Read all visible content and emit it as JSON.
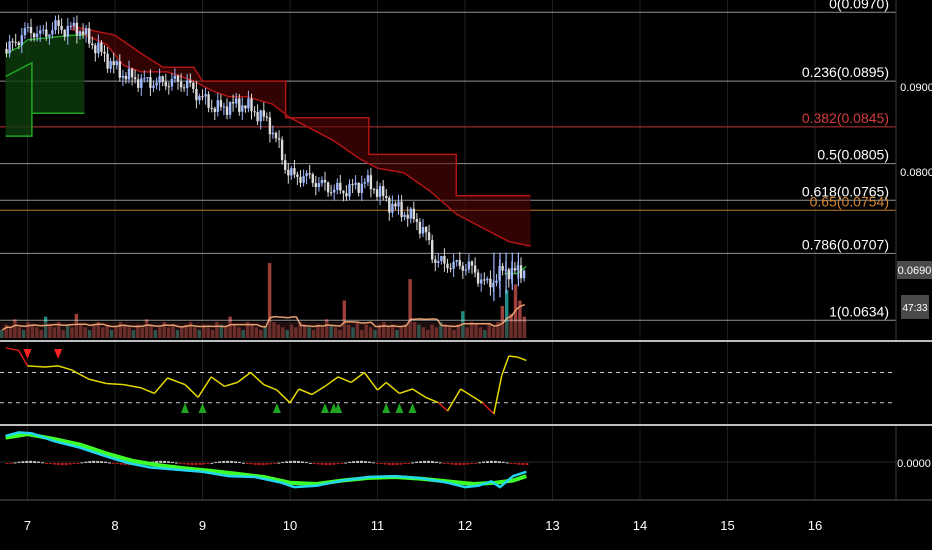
{
  "colors": {
    "background": "#000000",
    "grid": "#1e1e1e",
    "fib_line": "#cfcfcf",
    "fib_label": "#ffffff",
    "fib_red": "#d23c3c",
    "fib_orange": "#d2862e",
    "band_red": "#b01414",
    "band_green": "#1fa51f",
    "candle_up": "#9fb8ff",
    "candle_down": "#dcdcdc",
    "volume_up": "#26a69a",
    "volume_down": "#b84a44",
    "volume_ma": "#e8a070",
    "osc_yellow": "#e6d800",
    "osc_red": "#d81b1b",
    "osc_marker_green": "#1fa51f",
    "osc_marker_red": "#ff2020",
    "macd_cyan": "#22d6f0",
    "macd_green": "#3dff2a",
    "axis_text": "#ffffff",
    "tag_bg": "#4a4a4a"
  },
  "price_axis": {
    "ticks": [
      "0.0900",
      "0.0800"
    ]
  },
  "current_price_tag": "0.0690",
  "countdown_tag": "47:33",
  "macd_axis": {
    "ticks": [
      "0.0000"
    ]
  },
  "time_axis": {
    "labels": [
      "7",
      "8",
      "9",
      "10",
      "11",
      "12",
      "13",
      "14",
      "15",
      "16"
    ]
  },
  "chart_data": {
    "type": "line",
    "title": "",
    "ylim": [
      0.0618,
      0.0978
    ],
    "xlim": [
      6.75,
      16.9
    ],
    "fib_levels": [
      {
        "ratio": "0",
        "price": "0.0970",
        "label": "0(0.0970)",
        "color": "fib_line"
      },
      {
        "ratio": "0.236",
        "price": "0.0895",
        "label": "0.236(0.0895)",
        "color": "fib_line"
      },
      {
        "ratio": "0.382",
        "price": "0.0845",
        "label": "0.382(0.0845)",
        "color": "fib_red"
      },
      {
        "ratio": "0.5",
        "price": "0.0805",
        "label": "0.5(0.0805)",
        "color": "fib_line"
      },
      {
        "ratio": "0.618",
        "price": "0.0765",
        "label": "0.618(0.0765)",
        "color": "fib_line"
      },
      {
        "ratio": "0.65",
        "price": "0.0754",
        "label": "0.65(0.0754)",
        "color": "fib_orange"
      },
      {
        "ratio": "0.786",
        "price": "0.0707",
        "label": "0.786(0.0707)",
        "color": "fib_line"
      },
      {
        "ratio": "1",
        "price": "0.0634",
        "label": "1(0.0634)",
        "color": "fib_line"
      }
    ],
    "price_path": [
      [
        6.75,
        0.093
      ],
      [
        6.85,
        0.0935
      ],
      [
        6.95,
        0.0948
      ],
      [
        7.05,
        0.095
      ],
      [
        7.15,
        0.0945
      ],
      [
        7.25,
        0.095
      ],
      [
        7.35,
        0.0955
      ],
      [
        7.45,
        0.095
      ],
      [
        7.55,
        0.0955
      ],
      [
        7.65,
        0.0945
      ],
      [
        7.75,
        0.0935
      ],
      [
        7.85,
        0.0925
      ],
      [
        7.95,
        0.0915
      ],
      [
        8.05,
        0.0905
      ],
      [
        8.15,
        0.09
      ],
      [
        8.3,
        0.0895
      ],
      [
        8.5,
        0.0893
      ],
      [
        8.7,
        0.0895
      ],
      [
        8.85,
        0.089
      ],
      [
        8.95,
        0.088
      ],
      [
        9.05,
        0.0872
      ],
      [
        9.15,
        0.0865
      ],
      [
        9.3,
        0.0868
      ],
      [
        9.45,
        0.087
      ],
      [
        9.6,
        0.0862
      ],
      [
        9.75,
        0.085
      ],
      [
        9.85,
        0.083
      ],
      [
        9.95,
        0.08
      ],
      [
        10.05,
        0.079
      ],
      [
        10.15,
        0.0792
      ],
      [
        10.3,
        0.0785
      ],
      [
        10.45,
        0.0778
      ],
      [
        10.6,
        0.0775
      ],
      [
        10.75,
        0.078
      ],
      [
        10.85,
        0.0785
      ],
      [
        10.95,
        0.078
      ],
      [
        11.05,
        0.077
      ],
      [
        11.15,
        0.076
      ],
      [
        11.3,
        0.0752
      ],
      [
        11.45,
        0.0742
      ],
      [
        11.55,
        0.0728
      ],
      [
        11.65,
        0.07
      ],
      [
        11.75,
        0.0696
      ],
      [
        11.9,
        0.0694
      ],
      [
        12.05,
        0.0693
      ],
      [
        12.15,
        0.0682
      ],
      [
        12.25,
        0.0672
      ],
      [
        12.35,
        0.068
      ],
      [
        12.45,
        0.069
      ],
      [
        12.55,
        0.0686
      ],
      [
        12.7,
        0.069
      ]
    ],
    "resistance_band": [
      [
        7.5,
        0.0952
      ],
      [
        7.9,
        0.0935
      ],
      [
        8.1,
        0.0912
      ],
      [
        8.3,
        0.0905
      ],
      [
        8.6,
        0.0905
      ],
      [
        8.9,
        0.0895
      ],
      [
        9.1,
        0.0885
      ],
      [
        9.3,
        0.0878
      ],
      [
        9.5,
        0.0878
      ],
      [
        9.8,
        0.087
      ],
      [
        10.0,
        0.0855
      ],
      [
        10.2,
        0.0845
      ],
      [
        10.5,
        0.083
      ],
      [
        10.8,
        0.081
      ],
      [
        11.0,
        0.08
      ],
      [
        11.3,
        0.0795
      ],
      [
        11.6,
        0.0775
      ],
      [
        11.9,
        0.075
      ],
      [
        12.2,
        0.0735
      ],
      [
        12.5,
        0.072
      ],
      [
        12.75,
        0.0715
      ]
    ],
    "resistance_outer": [
      [
        7.5,
        0.0955
      ],
      [
        8.0,
        0.0945
      ],
      [
        8.3,
        0.0925
      ],
      [
        8.55,
        0.091
      ],
      [
        8.9,
        0.091
      ],
      [
        9.0,
        0.0895
      ],
      [
        9.5,
        0.0895
      ],
      [
        9.95,
        0.0895
      ],
      [
        9.95,
        0.0855
      ],
      [
        10.9,
        0.0855
      ],
      [
        10.9,
        0.0815
      ],
      [
        11.9,
        0.0815
      ],
      [
        11.9,
        0.077
      ],
      [
        12.75,
        0.077
      ]
    ],
    "support_band": [
      [
        6.75,
        0.0925
      ],
      [
        6.9,
        0.0932
      ],
      [
        7.0,
        0.094
      ],
      [
        7.2,
        0.0942
      ],
      [
        7.5,
        0.0945
      ],
      [
        7.65,
        0.0945
      ]
    ],
    "support_outer": [
      [
        6.75,
        0.09
      ],
      [
        6.95,
        0.091
      ],
      [
        7.05,
        0.0915
      ],
      [
        7.05,
        0.086
      ],
      [
        7.65,
        0.086
      ]
    ],
    "support_bottom": [
      [
        6.75,
        0.0835
      ],
      [
        7.05,
        0.0835
      ],
      [
        7.05,
        0.086
      ]
    ],
    "support_tail": [
      [
        12.45,
        0.0685
      ],
      [
        12.6,
        0.0685
      ],
      [
        12.7,
        0.0693
      ]
    ],
    "volume": [
      3,
      5,
      4,
      7,
      4,
      3,
      6,
      5,
      4,
      3,
      8,
      5,
      4,
      6,
      3,
      5,
      4,
      9,
      5,
      4,
      3,
      5,
      6,
      4,
      5,
      3,
      4,
      6,
      5,
      4,
      3,
      5,
      4,
      7,
      5,
      3,
      4,
      6,
      4,
      5,
      3,
      4,
      5,
      6,
      4,
      3,
      5,
      4,
      3,
      6,
      5,
      4,
      8,
      5,
      4,
      3,
      6,
      5,
      4,
      3,
      4,
      28,
      6,
      5,
      4,
      3,
      5,
      4,
      6,
      5,
      4,
      3,
      5,
      4,
      7,
      5,
      4,
      3,
      14,
      5,
      4,
      6,
      3,
      5,
      4,
      3,
      5,
      6,
      4,
      5,
      3,
      4,
      5,
      22,
      6,
      5,
      4,
      3,
      5,
      4,
      6,
      5,
      4,
      3,
      5,
      10,
      4,
      6,
      5,
      4,
      3,
      5,
      4,
      6,
      12,
      18,
      9,
      20,
      14,
      8
    ],
    "oscillator": [
      [
        6.75,
        0.95
      ],
      [
        6.9,
        0.9
      ],
      [
        7.0,
        0.62
      ],
      [
        7.2,
        0.6
      ],
      [
        7.35,
        0.62
      ],
      [
        7.5,
        0.55
      ],
      [
        7.7,
        0.38
      ],
      [
        7.9,
        0.3
      ],
      [
        8.1,
        0.28
      ],
      [
        8.3,
        0.22
      ],
      [
        8.45,
        0.12
      ],
      [
        8.6,
        0.4
      ],
      [
        8.8,
        0.28
      ],
      [
        8.95,
        0.05
      ],
      [
        9.1,
        0.42
      ],
      [
        9.25,
        0.25
      ],
      [
        9.4,
        0.32
      ],
      [
        9.55,
        0.5
      ],
      [
        9.7,
        0.28
      ],
      [
        9.85,
        0.18
      ],
      [
        10.0,
        -0.05
      ],
      [
        10.1,
        0.2
      ],
      [
        10.25,
        0.1
      ],
      [
        10.4,
        0.25
      ],
      [
        10.55,
        0.42
      ],
      [
        10.7,
        0.32
      ],
      [
        10.85,
        0.5
      ],
      [
        11.0,
        0.18
      ],
      [
        11.1,
        0.32
      ],
      [
        11.25,
        0.12
      ],
      [
        11.4,
        0.2
      ],
      [
        11.55,
        0.05
      ],
      [
        11.7,
        -0.05
      ],
      [
        11.8,
        -0.2
      ],
      [
        11.95,
        0.2
      ],
      [
        12.05,
        0.1
      ],
      [
        12.2,
        -0.05
      ],
      [
        12.33,
        -0.25
      ],
      [
        12.42,
        0.45
      ],
      [
        12.5,
        0.8
      ],
      [
        12.6,
        0.78
      ],
      [
        12.7,
        0.72
      ]
    ],
    "oscillator_lines": [
      0.5,
      -0.05
    ],
    "macd_cyan": [
      [
        6.75,
        0.62
      ],
      [
        6.9,
        0.7
      ],
      [
        7.05,
        0.68
      ],
      [
        7.3,
        0.5
      ],
      [
        7.6,
        0.35
      ],
      [
        7.9,
        0.15
      ],
      [
        8.15,
        0.0
      ],
      [
        8.4,
        -0.1
      ],
      [
        8.7,
        -0.15
      ],
      [
        9.0,
        -0.2
      ],
      [
        9.3,
        -0.3
      ],
      [
        9.6,
        -0.32
      ],
      [
        9.9,
        -0.45
      ],
      [
        10.05,
        -0.55
      ],
      [
        10.3,
        -0.52
      ],
      [
        10.6,
        -0.4
      ],
      [
        10.9,
        -0.32
      ],
      [
        11.2,
        -0.3
      ],
      [
        11.5,
        -0.35
      ],
      [
        11.8,
        -0.45
      ],
      [
        12.0,
        -0.55
      ],
      [
        12.15,
        -0.52
      ],
      [
        12.3,
        -0.42
      ],
      [
        12.4,
        -0.55
      ],
      [
        12.55,
        -0.3
      ],
      [
        12.7,
        -0.2
      ]
    ],
    "macd_green": [
      [
        6.75,
        0.58
      ],
      [
        7.0,
        0.66
      ],
      [
        7.3,
        0.55
      ],
      [
        7.6,
        0.42
      ],
      [
        7.9,
        0.22
      ],
      [
        8.2,
        0.05
      ],
      [
        8.5,
        -0.05
      ],
      [
        8.8,
        -0.12
      ],
      [
        9.1,
        -0.18
      ],
      [
        9.4,
        -0.25
      ],
      [
        9.7,
        -0.32
      ],
      [
        10.0,
        -0.45
      ],
      [
        10.3,
        -0.48
      ],
      [
        10.6,
        -0.4
      ],
      [
        10.9,
        -0.34
      ],
      [
        11.2,
        -0.32
      ],
      [
        11.5,
        -0.36
      ],
      [
        11.8,
        -0.42
      ],
      [
        12.1,
        -0.48
      ],
      [
        12.35,
        -0.45
      ],
      [
        12.55,
        -0.4
      ],
      [
        12.7,
        -0.3
      ]
    ]
  }
}
